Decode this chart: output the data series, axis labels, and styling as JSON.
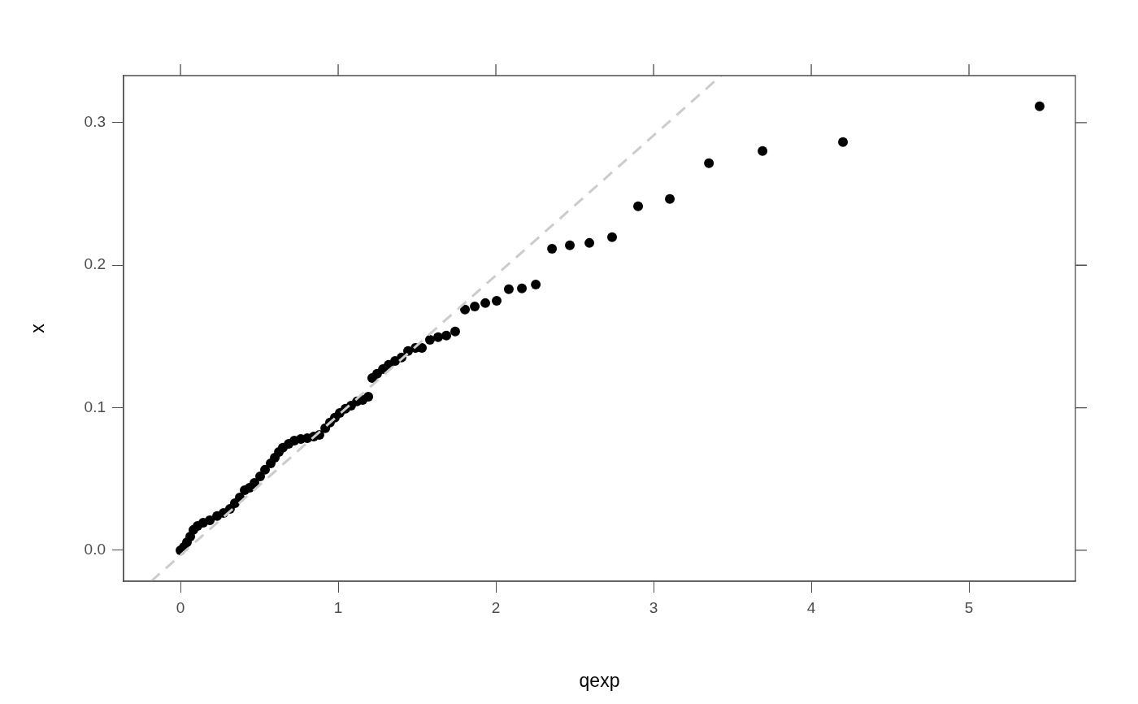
{
  "chart_data": {
    "type": "scatter",
    "xlabel": "qexp",
    "ylabel": "x",
    "xlim": [
      -0.361,
      5.675
    ],
    "ylim": [
      -0.0217,
      0.333
    ],
    "xticks": [
      0,
      1,
      2,
      3,
      4,
      5
    ],
    "yticks": [
      {
        "value": 0,
        "label": "0.0"
      },
      0.1,
      0.2,
      0.3
    ],
    "grid": false,
    "legend": false,
    "marker": "circle",
    "series": [
      {
        "type": "line",
        "color": "#cccccc",
        "line_style": "dashed",
        "marker": "none",
        "x": [
          -0.186,
          3.428
        ],
        "values": [
          -0.0217,
          0.333
        ]
      },
      {
        "color": "#000000",
        "x": [
          0,
          0.021,
          0.041,
          0.062,
          0.082,
          0.108,
          0.144,
          0.186,
          0.232,
          0.273,
          0.314,
          0.345,
          0.376,
          0.407,
          0.438,
          0.469,
          0.505,
          0.536,
          0.572,
          0.598,
          0.624,
          0.649,
          0.686,
          0.722,
          0.763,
          0.804,
          0.845,
          0.881,
          0.918,
          0.948,
          0.979,
          1.01,
          1.046,
          1.082,
          1.119,
          1.155,
          1.191,
          1.216,
          1.247,
          1.284,
          1.32,
          1.361,
          1.402,
          1.443,
          1.49,
          1.531,
          1.582,
          1.634,
          1.686,
          1.742,
          1.804,
          1.866,
          1.933,
          2.005,
          2.082,
          2.165,
          2.253,
          2.356,
          2.469,
          2.593,
          2.737,
          2.902,
          3.103,
          3.351,
          3.691,
          4.201,
          5.448
        ],
        "values": [
          0,
          0.0023,
          0.0057,
          0.0097,
          0.0143,
          0.0171,
          0.0194,
          0.0211,
          0.024,
          0.0262,
          0.0291,
          0.0331,
          0.0371,
          0.0422,
          0.0439,
          0.0473,
          0.0519,
          0.0565,
          0.061,
          0.065,
          0.069,
          0.0719,
          0.0747,
          0.077,
          0.0781,
          0.0787,
          0.0798,
          0.081,
          0.0856,
          0.0896,
          0.093,
          0.0964,
          0.0993,
          0.1015,
          0.1044,
          0.1055,
          0.1078,
          0.1209,
          0.1238,
          0.1272,
          0.1301,
          0.1329,
          0.1352,
          0.1398,
          0.142,
          0.142,
          0.1477,
          0.1495,
          0.1506,
          0.1535,
          0.1689,
          0.1711,
          0.1734,
          0.1751,
          0.1831,
          0.1837,
          0.1865,
          0.2116,
          0.2139,
          0.2156,
          0.2196,
          0.2413,
          0.2464,
          0.2715,
          0.2801,
          0.2864,
          0.3115
        ]
      }
    ]
  }
}
